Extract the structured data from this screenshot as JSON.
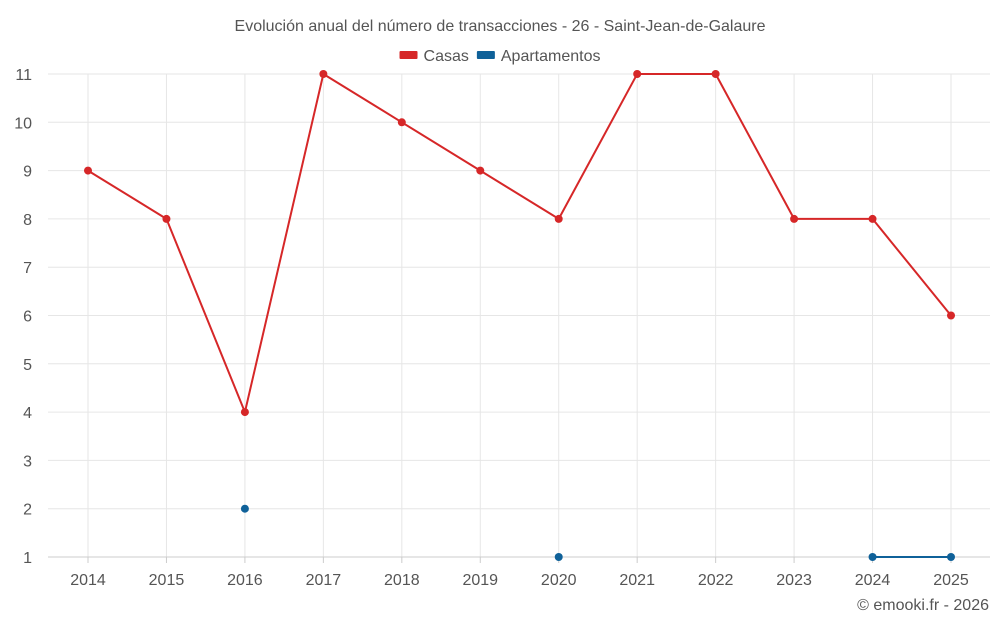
{
  "chart_data": {
    "type": "line",
    "title": "Evolución anual del número de transacciones - 26 - Saint-Jean-de-Galaure",
    "xlabel": "",
    "ylabel": "",
    "categories": [
      "2014",
      "2015",
      "2016",
      "2017",
      "2018",
      "2019",
      "2020",
      "2021",
      "2022",
      "2023",
      "2024",
      "2025"
    ],
    "ylim": [
      1,
      11
    ],
    "yticks": [
      1,
      2,
      3,
      4,
      5,
      6,
      7,
      8,
      9,
      10,
      11
    ],
    "grid": true,
    "legend_position": "top-center",
    "series": [
      {
        "name": "Casas",
        "color": "#d62728",
        "values": [
          9,
          8,
          4,
          11,
          10,
          9,
          8,
          11,
          11,
          8,
          8,
          6
        ]
      },
      {
        "name": "Apartamentos",
        "color": "#0f6199",
        "values": [
          null,
          null,
          2,
          null,
          null,
          null,
          1,
          null,
          null,
          null,
          1,
          1
        ]
      }
    ]
  },
  "credit": "© emooki.fr - 2026"
}
